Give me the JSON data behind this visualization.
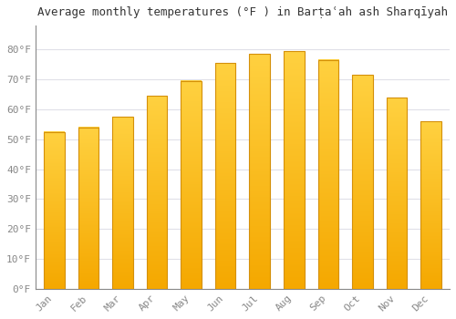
{
  "title": "Average monthly temperatures (°F ) in Barṭaʿah ash Sharqīyah",
  "months": [
    "Jan",
    "Feb",
    "Mar",
    "Apr",
    "May",
    "Jun",
    "Jul",
    "Aug",
    "Sep",
    "Oct",
    "Nov",
    "Dec"
  ],
  "values": [
    52.5,
    54.0,
    57.5,
    64.5,
    69.5,
    75.5,
    78.5,
    79.5,
    76.5,
    71.5,
    64.0,
    56.0
  ],
  "bar_color_bottom": "#F5A800",
  "bar_color_top": "#FFD140",
  "bar_edge_color": "#D4900A",
  "background_color": "#FFFFFF",
  "grid_color": "#E0E0E8",
  "ylim": [
    0,
    88
  ],
  "yticks": [
    0,
    10,
    20,
    30,
    40,
    50,
    60,
    70,
    80
  ],
  "ytick_labels": [
    "0°F",
    "10°F",
    "20°F",
    "30°F",
    "40°F",
    "50°F",
    "60°F",
    "70°F",
    "80°F"
  ],
  "title_fontsize": 9,
  "tick_fontsize": 8,
  "tick_color": "#888888"
}
